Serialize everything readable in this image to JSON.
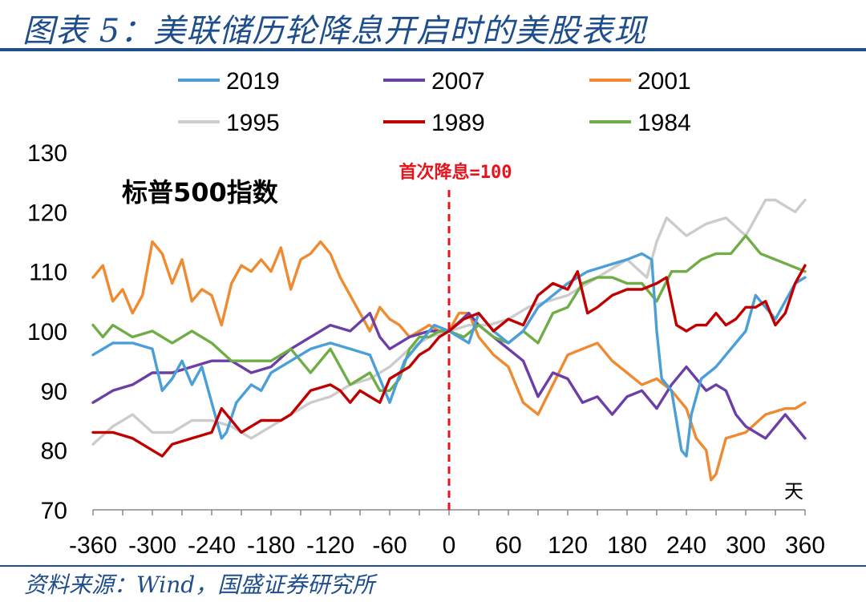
{
  "header": {
    "title": "图表 5：美联储历轮降息开启时的美股表现"
  },
  "footer": {
    "source": "资料来源：Wind，国盛证券研究所"
  },
  "chart_data": {
    "type": "line",
    "title": "标普500指数",
    "xlabel": "",
    "ylabel": "",
    "x_unit": "天",
    "xlim": [
      -360,
      360
    ],
    "ylim": [
      70,
      130
    ],
    "x_ticks": [
      -360,
      -300,
      -240,
      -180,
      -120,
      -60,
      0,
      60,
      120,
      180,
      240,
      300,
      360
    ],
    "y_ticks": [
      70,
      80,
      90,
      100,
      110,
      120,
      130
    ],
    "grid": false,
    "legend_position": "top",
    "reference_line": {
      "x": 0,
      "label": "首次降息=100",
      "color": "#e8141b",
      "style": "dashed"
    },
    "series": [
      {
        "name": "2019",
        "color": "#4a9fd8",
        "x": [
          -360,
          -340,
          -320,
          -300,
          -290,
          -280,
          -270,
          -260,
          -250,
          -240,
          -230,
          -225,
          -215,
          -200,
          -190,
          -180,
          -160,
          -140,
          -120,
          -100,
          -80,
          -70,
          -60,
          -45,
          -30,
          -15,
          0,
          10,
          20,
          30,
          45,
          60,
          75,
          90,
          105,
          120,
          140,
          160,
          180,
          195,
          205,
          210,
          215,
          225,
          235,
          240,
          245,
          255,
          270,
          280,
          300,
          310,
          320,
          330,
          340,
          350,
          360
        ],
        "y": [
          96,
          98,
          98,
          97,
          90,
          92,
          95,
          91,
          94,
          88,
          82,
          83,
          88,
          91,
          90,
          93,
          95,
          97,
          98,
          97,
          96,
          92,
          88,
          95,
          98,
          101,
          100,
          99,
          98,
          103,
          100,
          98,
          100,
          104,
          106,
          108,
          110,
          111,
          112,
          113,
          112,
          100,
          92,
          90,
          80,
          79,
          86,
          92,
          94,
          96,
          100,
          106,
          104,
          102,
          105,
          108,
          109
        ]
      },
      {
        "name": "2007",
        "color": "#6b3fa6",
        "x": [
          -360,
          -340,
          -320,
          -300,
          -280,
          -260,
          -240,
          -220,
          -200,
          -180,
          -160,
          -140,
          -120,
          -100,
          -80,
          -70,
          -60,
          -50,
          -40,
          -20,
          0,
          20,
          30,
          45,
          60,
          75,
          90,
          105,
          120,
          135,
          150,
          165,
          180,
          195,
          210,
          225,
          240,
          250,
          260,
          270,
          280,
          290,
          300,
          320,
          340,
          350,
          360
        ],
        "y": [
          88,
          90,
          91,
          93,
          93,
          94,
          95,
          95,
          93,
          94,
          97,
          99,
          101,
          100,
          103,
          99,
          97,
          98,
          99,
          100,
          100,
          103,
          101,
          99,
          97,
          95,
          89,
          93,
          92,
          88,
          89,
          86,
          89,
          90,
          87,
          91,
          94,
          92,
          90,
          91,
          90,
          86,
          84,
          82,
          86,
          84,
          82
        ]
      },
      {
        "name": "2001",
        "color": "#f08a30",
        "x": [
          -360,
          -350,
          -340,
          -330,
          -320,
          -310,
          -300,
          -290,
          -280,
          -270,
          -260,
          -250,
          -240,
          -230,
          -220,
          -210,
          -200,
          -190,
          -180,
          -170,
          -160,
          -150,
          -140,
          -130,
          -120,
          -110,
          -100,
          -90,
          -80,
          -70,
          -60,
          -50,
          -40,
          -30,
          -20,
          -10,
          0,
          10,
          20,
          30,
          45,
          60,
          75,
          90,
          105,
          120,
          135,
          150,
          165,
          180,
          195,
          210,
          225,
          240,
          250,
          260,
          265,
          270,
          280,
          300,
          320,
          340,
          350,
          360
        ],
        "y": [
          109,
          111,
          105,
          107,
          103,
          106,
          115,
          113,
          108,
          112,
          105,
          107,
          106,
          101,
          108,
          111,
          110,
          112,
          110,
          114,
          107,
          112,
          113,
          115,
          113,
          109,
          106,
          103,
          100,
          104,
          102,
          101,
          99,
          100,
          101,
          100,
          100,
          103,
          103,
          99,
          96,
          94,
          88,
          86,
          91,
          96,
          97,
          98,
          95,
          93,
          91,
          92,
          90,
          87,
          82,
          80,
          75,
          76,
          82,
          83,
          86,
          87,
          87,
          88
        ]
      },
      {
        "name": "1995",
        "color": "#cccccc",
        "x": [
          -360,
          -340,
          -320,
          -300,
          -280,
          -260,
          -240,
          -220,
          -200,
          -180,
          -160,
          -140,
          -120,
          -100,
          -80,
          -60,
          -40,
          -20,
          0,
          20,
          40,
          60,
          80,
          100,
          120,
          140,
          160,
          180,
          200,
          210,
          220,
          240,
          260,
          280,
          300,
          320,
          330,
          340,
          350,
          360
        ],
        "y": [
          81,
          84,
          86,
          83,
          83,
          85,
          85,
          84,
          82,
          84,
          86,
          88,
          89,
          91,
          92,
          94,
          97,
          99,
          100,
          101,
          101,
          102,
          104,
          105,
          106,
          108,
          110,
          112,
          109,
          115,
          119,
          116,
          118,
          119,
          116,
          122,
          122,
          121,
          120,
          122
        ]
      },
      {
        "name": "1989",
        "color": "#c00000",
        "x": [
          -360,
          -340,
          -320,
          -300,
          -290,
          -280,
          -260,
          -240,
          -230,
          -220,
          -210,
          -200,
          -190,
          -180,
          -170,
          -160,
          -150,
          -140,
          -120,
          -110,
          -100,
          -90,
          -80,
          -70,
          -60,
          -50,
          -40,
          -30,
          -20,
          -10,
          0,
          15,
          30,
          45,
          60,
          75,
          90,
          105,
          120,
          130,
          140,
          150,
          165,
          180,
          195,
          210,
          220,
          230,
          240,
          250,
          260,
          270,
          280,
          290,
          300,
          310,
          320,
          330,
          340,
          350,
          360
        ],
        "y": [
          83,
          83,
          82,
          80,
          79,
          81,
          82,
          83,
          87,
          85,
          83,
          84,
          85,
          85,
          85,
          86,
          88,
          90,
          91,
          90,
          88,
          90,
          89,
          88,
          92,
          93,
          94,
          96,
          97,
          99,
          100,
          102,
          103,
          100,
          102,
          101,
          106,
          108,
          107,
          110,
          103,
          104,
          106,
          107,
          107,
          108,
          109,
          101,
          100,
          101,
          101,
          103,
          101,
          102,
          104,
          104,
          105,
          101,
          103,
          108,
          111
        ]
      },
      {
        "name": "1984",
        "color": "#70ad47",
        "x": [
          -360,
          -350,
          -340,
          -320,
          -300,
          -280,
          -260,
          -240,
          -220,
          -200,
          -180,
          -160,
          -140,
          -120,
          -100,
          -90,
          -80,
          -70,
          -60,
          -50,
          -40,
          -30,
          -20,
          -10,
          0,
          15,
          30,
          45,
          60,
          75,
          90,
          105,
          120,
          135,
          150,
          165,
          180,
          195,
          210,
          225,
          240,
          255,
          270,
          285,
          300,
          315,
          330,
          345,
          360
        ],
        "y": [
          101,
          99,
          101,
          99,
          100,
          98,
          100,
          98,
          95,
          95,
          95,
          97,
          93,
          97,
          91,
          92,
          93,
          90,
          90,
          92,
          97,
          99,
          99,
          100,
          100,
          99,
          101,
          99,
          98,
          100,
          98,
          103,
          104,
          108,
          109,
          109,
          108,
          108,
          105,
          110,
          110,
          112,
          113,
          113,
          116,
          113,
          112,
          111,
          110
        ]
      }
    ]
  }
}
